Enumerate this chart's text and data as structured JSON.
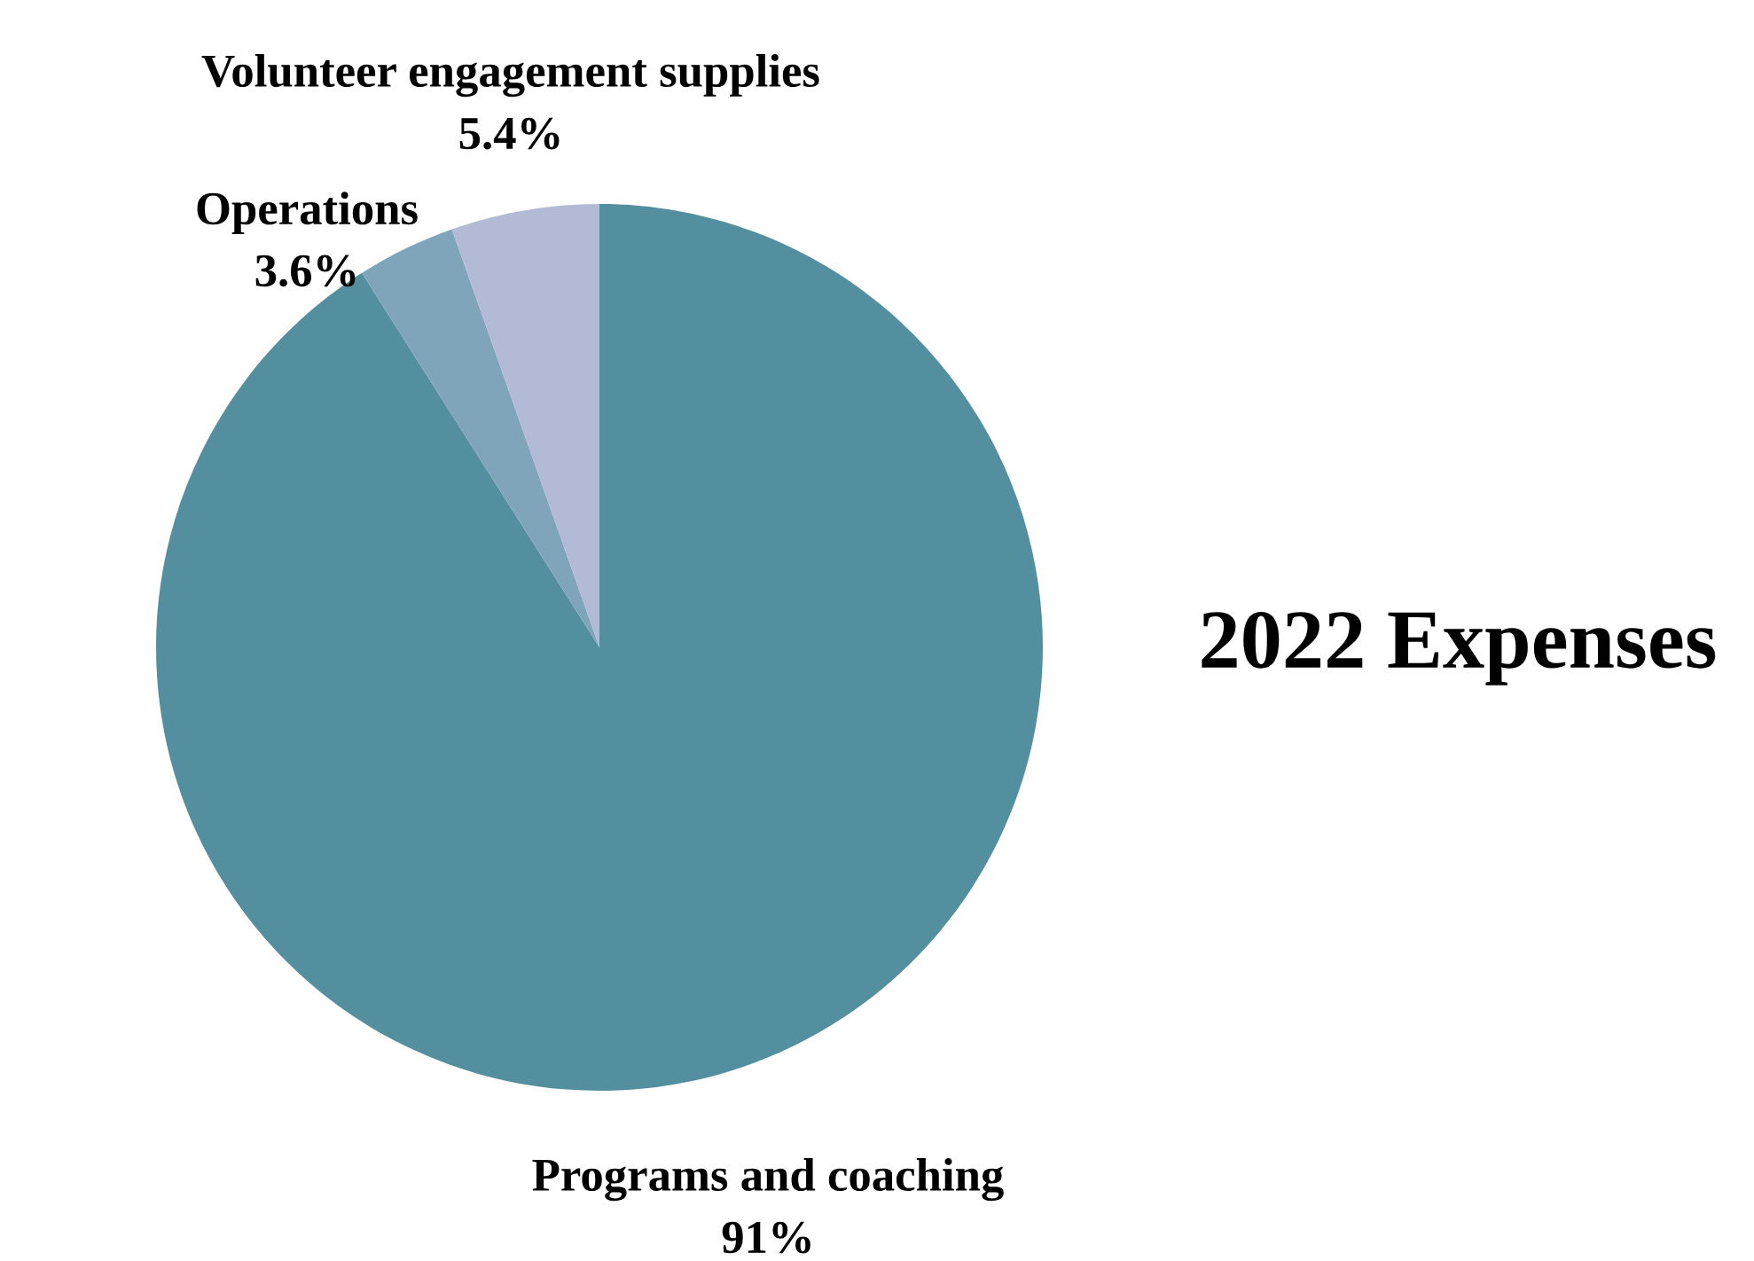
{
  "chart_data": {
    "type": "pie",
    "title": "2022 Expenses",
    "categories": [
      "Programs and coaching",
      "Operations",
      "Volunteer engagement supplies"
    ],
    "values": [
      91,
      3.6,
      5.4
    ],
    "value_labels": [
      "91%",
      "3.6%",
      "5.4%"
    ],
    "colors": [
      "#548fa0",
      "#80a5bb",
      "#b3bad6"
    ],
    "legend": false
  }
}
